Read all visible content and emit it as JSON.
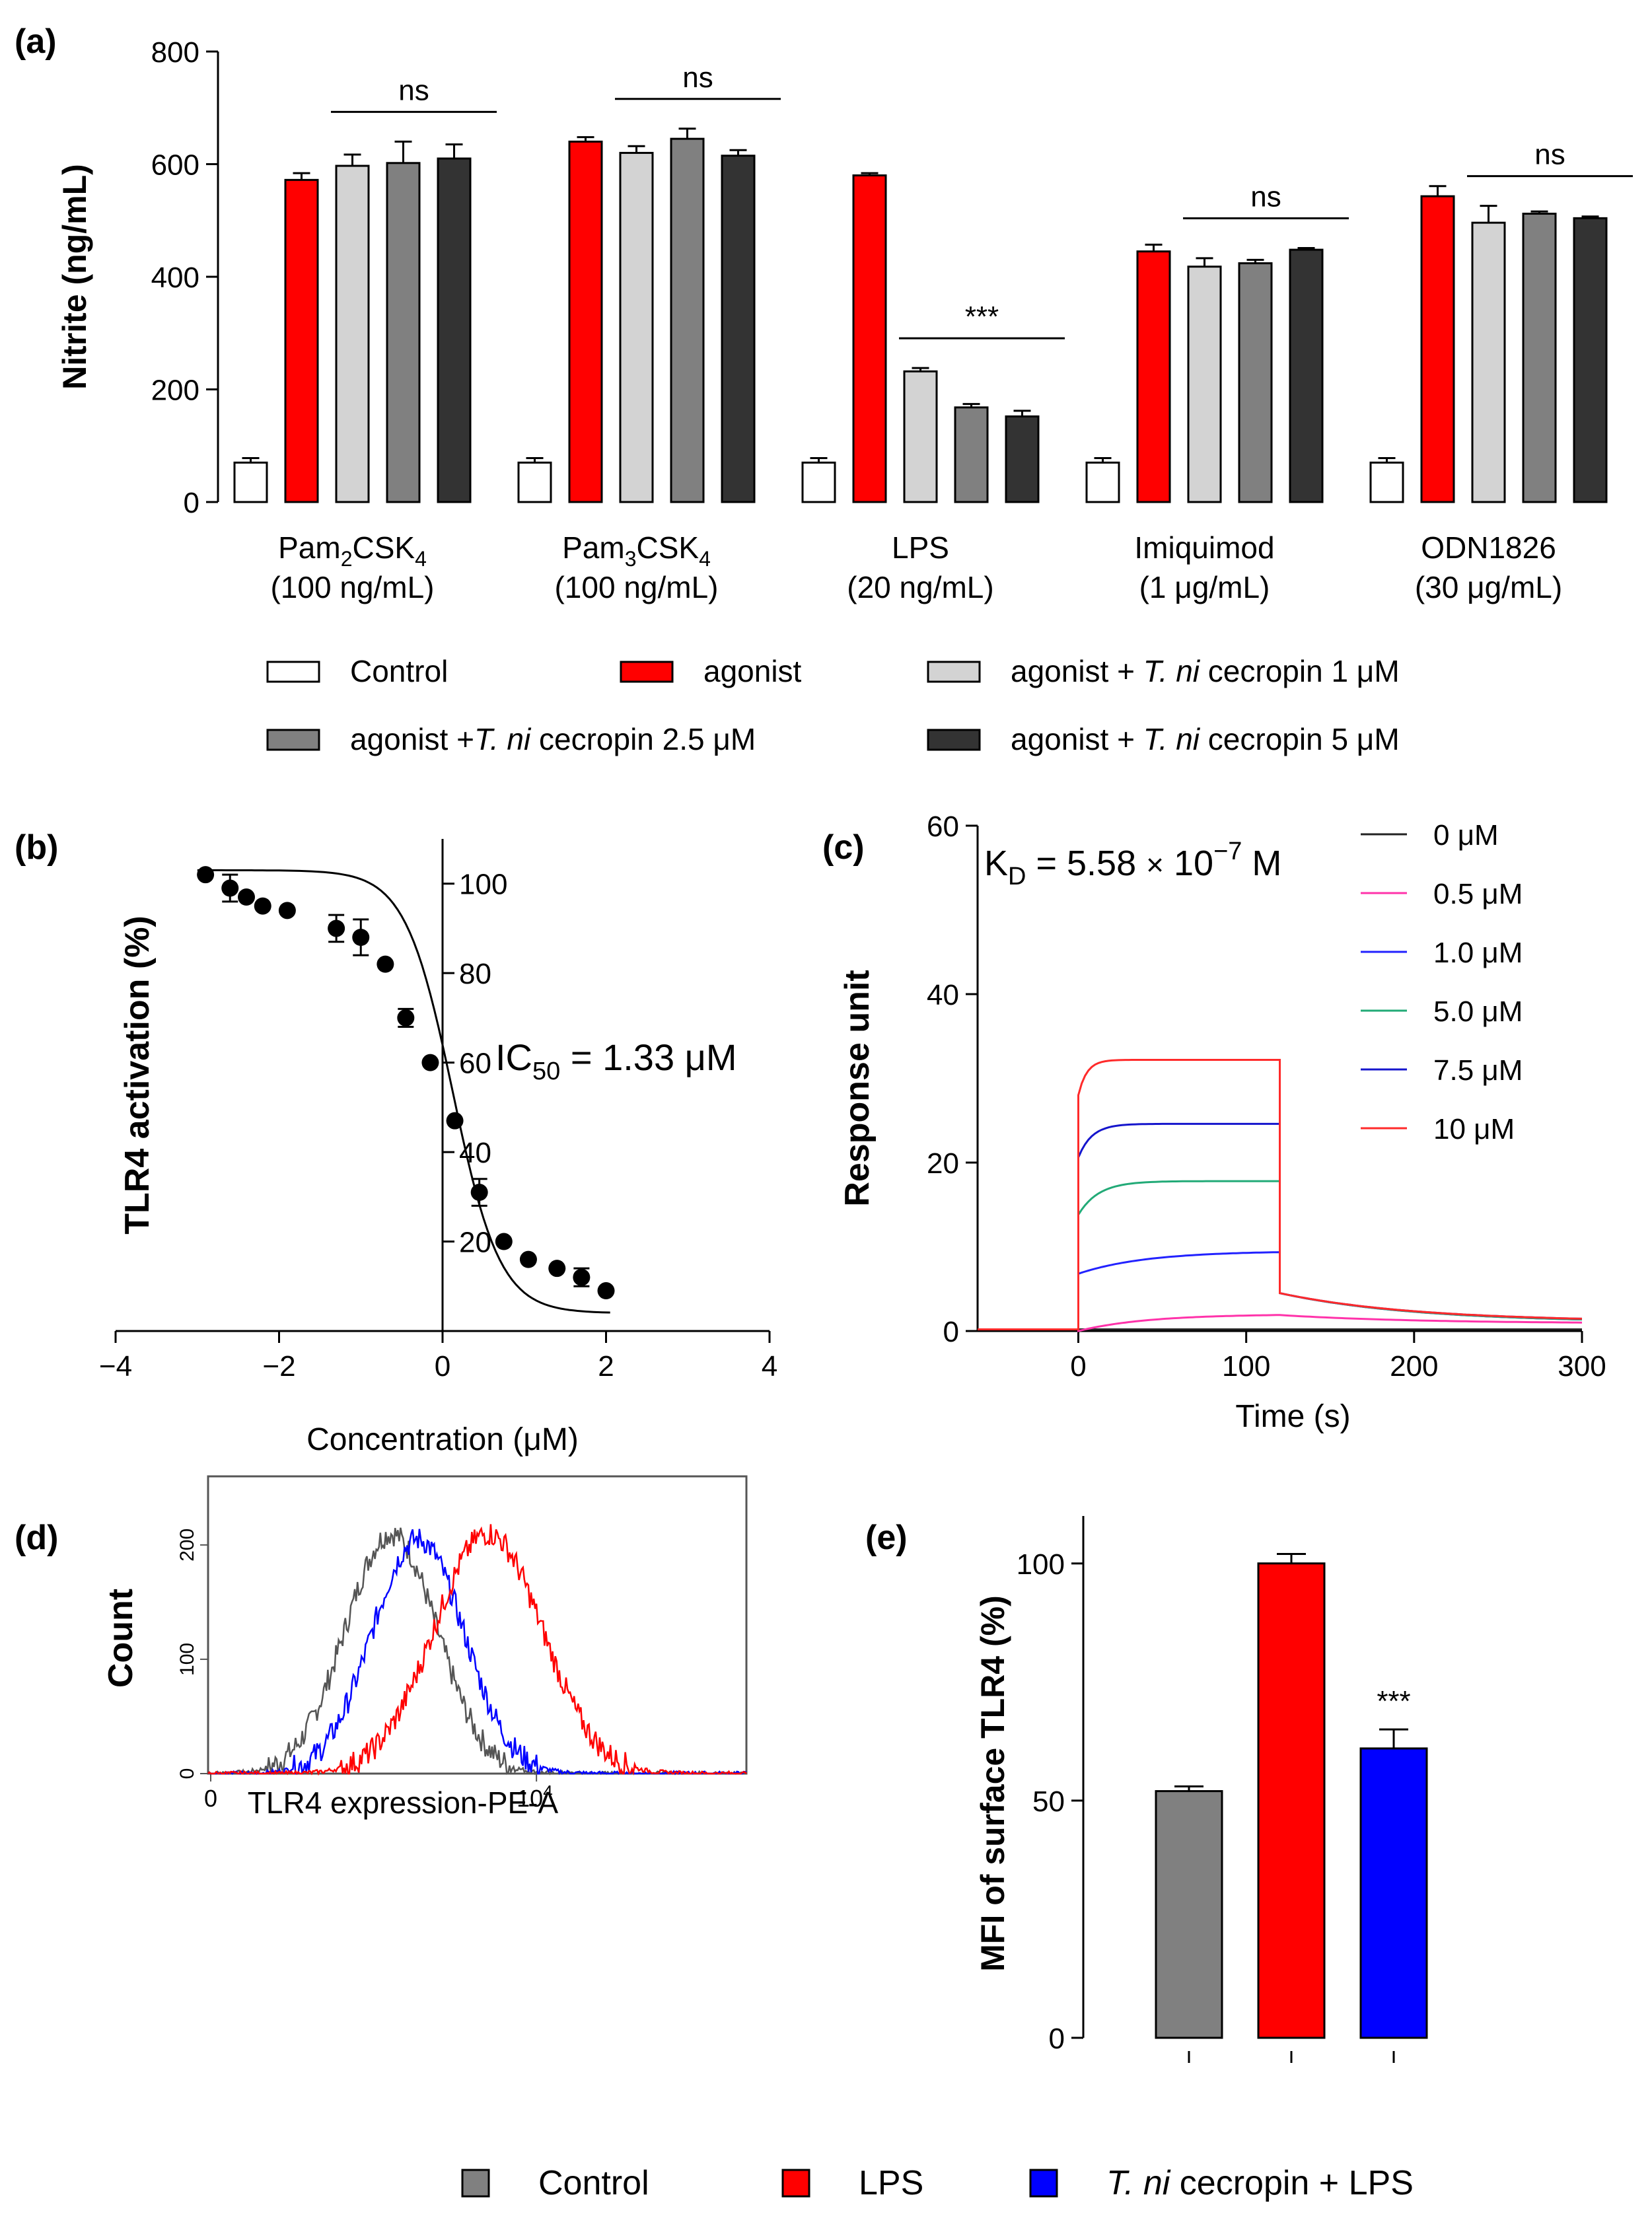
{
  "chart_data": [
    {
      "id": "a",
      "panel_label": "(a)",
      "type": "bar",
      "ylabel": "Nitrite (ng/mL)",
      "ylim": [
        0,
        800
      ],
      "yticks": [
        "0",
        "200",
        "400",
        "600",
        "800"
      ],
      "groups": [
        {
          "name": "Pam2CSK4",
          "line1": "Pam",
          "sub1": "2",
          "mid": "CSK",
          "sub2": "4",
          "line2": "(100 ng/mL)",
          "values": [
            70,
            572,
            597,
            602,
            610
          ],
          "errors": [
            8,
            12,
            20,
            38,
            25
          ],
          "sig": "ns"
        },
        {
          "name": "Pam3CSK4",
          "line1": "Pam",
          "sub1": "3",
          "mid": "CSK",
          "sub2": "4",
          "line2": "(100 ng/mL)",
          "values": [
            70,
            640,
            620,
            645,
            615
          ],
          "errors": [
            8,
            8,
            12,
            18,
            10
          ],
          "sig": "ns"
        },
        {
          "name": "LPS",
          "line1": "LPS",
          "line2": "(20 ng/mL)",
          "values": [
            70,
            580,
            232,
            168,
            152
          ],
          "errors": [
            8,
            4,
            6,
            6,
            10
          ],
          "sig": "***"
        },
        {
          "name": "Imiquimod",
          "line1": "Imiquimod",
          "line2": "(1 μg/mL)",
          "values": [
            70,
            445,
            418,
            424,
            448
          ],
          "errors": [
            8,
            12,
            15,
            6,
            3
          ],
          "sig": "ns"
        },
        {
          "name": "ODN1826",
          "line1": "ODN1826",
          "line2": "(30 μg/mL)",
          "values": [
            70,
            543,
            496,
            512,
            504
          ],
          "errors": [
            8,
            18,
            30,
            4,
            3
          ],
          "sig": "ns"
        }
      ],
      "series": [
        {
          "name": "Control",
          "color": "#ffffff"
        },
        {
          "name": "agonist",
          "color": "#ff0000"
        },
        {
          "name": "agonist + T. ni cecropin 1 μM",
          "color": "#d3d3d3"
        },
        {
          "name": "agonist +T. ni cecropin 2.5 μM",
          "color": "#808080"
        },
        {
          "name": "agonist + T. ni cecropin 5 μM",
          "color": "#333333"
        }
      ],
      "legend": [
        {
          "pre": "Control",
          "it": "",
          "post": ""
        },
        {
          "pre": "agonist",
          "it": "",
          "post": ""
        },
        {
          "pre": "agonist + ",
          "it": "T. ni",
          "post": " cecropin 1 μM"
        },
        {
          "pre": "agonist +",
          "it": "T. ni",
          "post": " cecropin 2.5 μM"
        },
        {
          "pre": "agonist + ",
          "it": "T. ni",
          "post": " cecropin 5 μM"
        }
      ]
    },
    {
      "id": "b",
      "panel_label": "(b)",
      "type": "scatter",
      "xlabel": "Concentration (μM)",
      "ylabel": "TLR4 activation (%)",
      "xlim": [
        -4,
        4
      ],
      "ylim": [
        0,
        110
      ],
      "xticks": [
        "−4",
        "−2",
        "0",
        "2",
        "4"
      ],
      "xtick_values": [
        -4,
        -2,
        0,
        2,
        4
      ],
      "yticks": [
        "20",
        "40",
        "60",
        "80",
        "100"
      ],
      "ytick_values": [
        20,
        40,
        60,
        80,
        100
      ],
      "annotation": {
        "pre": "IC",
        "sub": "50",
        "post": " = 1.33 μM"
      },
      "x": [
        -2.9,
        -2.6,
        -2.4,
        -2.2,
        -1.9,
        -1.3,
        -1.0,
        -0.7,
        -0.45,
        -0.15,
        0.15,
        0.45,
        0.75,
        1.05,
        1.4,
        1.7,
        2.0
      ],
      "y": [
        102,
        99,
        97,
        95,
        94,
        90,
        88,
        82,
        70,
        60,
        47,
        31,
        20,
        16,
        14,
        12,
        9
      ],
      "errors": [
        0,
        3,
        0,
        0,
        0,
        3,
        4,
        0,
        2,
        0,
        0,
        3,
        0,
        0,
        0,
        2,
        0
      ],
      "fit": {
        "top": 103,
        "bottom": 4,
        "x50": 0.124,
        "slope": 1.5
      }
    },
    {
      "id": "c",
      "panel_label": "(c)",
      "type": "line",
      "xlabel": "Time (s)",
      "ylabel": "Response unit",
      "xlim": [
        -60,
        300
      ],
      "ylim": [
        0,
        60
      ],
      "xticks": [
        "0",
        "100",
        "200",
        "300"
      ],
      "xtick_values": [
        0,
        100,
        200,
        300
      ],
      "yticks": [
        "0",
        "20",
        "40",
        "60"
      ],
      "ytick_values": [
        0,
        20,
        40,
        60
      ],
      "annotation": {
        "pre": "K",
        "sub": "D",
        "mid": " = 5.58 ",
        "times": "×",
        "post": " 10",
        "sup": "−7",
        "end": " M"
      },
      "series": [
        {
          "name": "0 μM",
          "color": "#222222",
          "plateau": 0.2,
          "fast": 0.0,
          "end": 0.2,
          "tau": 10
        },
        {
          "name": "0.5 μM",
          "color": "#ff33aa",
          "plateau": 2.0,
          "fast": 0.0,
          "end": 0.9,
          "tau": 40
        },
        {
          "name": "1.0 μM",
          "color": "#2222ff",
          "plateau": 9.5,
          "fast": 6.8,
          "end": 1.0,
          "tau": 40
        },
        {
          "name": "5.0 μM",
          "color": "#22aa77",
          "plateau": 17.8,
          "fast": 13.8,
          "end": 1.0,
          "tau": 12
        },
        {
          "name": "7.5 μM",
          "color": "#1515cc",
          "plateau": 24.6,
          "fast": 20.6,
          "end": 1.1,
          "tau": 8
        },
        {
          "name": "10 μM",
          "color": "#ff2a2a",
          "plateau": 32.2,
          "fast": 28.0,
          "end": 1.1,
          "tau": 5
        }
      ],
      "dissociation_start": 4.5
    },
    {
      "id": "d",
      "panel_label": "(d)",
      "type": "area",
      "xlabel": "TLR4 expression-PE-A",
      "ylabel": "Count",
      "xticks": [
        "0",
        "10"
      ],
      "xtick_sup": "4",
      "ylim": [
        0,
        260
      ],
      "yticks": [
        "0",
        "100",
        "200"
      ],
      "ytick_values": [
        0,
        100,
        200
      ],
      "series": [
        {
          "name": "Control",
          "color": "#555555",
          "peak": 210,
          "center": 0.34,
          "width": 0.085
        },
        {
          "name": "T. ni cecropin + LPS",
          "color": "#0000ff",
          "peak": 205,
          "center": 0.39,
          "width": 0.085
        },
        {
          "name": "LPS",
          "color": "#ff0000",
          "peak": 210,
          "center": 0.52,
          "width": 0.1
        }
      ]
    },
    {
      "id": "e",
      "panel_label": "(e)",
      "type": "bar",
      "ylabel": "MFI of surface TLR4 (%)",
      "ylim": [
        0,
        110
      ],
      "yticks": [
        "0",
        "50",
        "100"
      ],
      "ytick_values": [
        0,
        50,
        100
      ],
      "categories": [
        "Control",
        "LPS",
        "T. ni cecropin + LPS"
      ],
      "values": [
        52,
        100,
        61
      ],
      "errors": [
        1,
        2,
        4
      ],
      "colors": [
        "#808080",
        "#ff0000",
        "#0000ff"
      ],
      "sig": "***"
    }
  ],
  "legend_bottom": [
    {
      "pre": "Control",
      "it": "",
      "post": "",
      "color": "#808080"
    },
    {
      "pre": "LPS",
      "it": "",
      "post": "",
      "color": "#ff0000"
    },
    {
      "pre": "",
      "it": "T. ni",
      "post": " cecropin + LPS",
      "color": "#0000ff"
    }
  ]
}
